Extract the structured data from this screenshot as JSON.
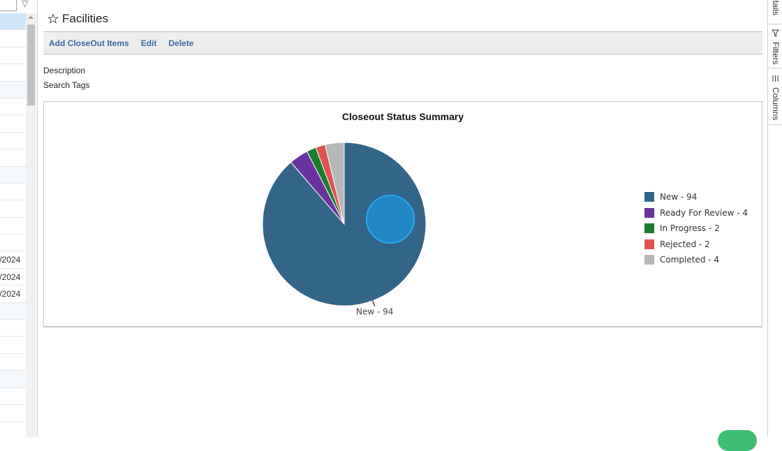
{
  "left_grid": {
    "rows": [
      {
        "text": "",
        "state": "sel"
      },
      {
        "text": "",
        "state": ""
      },
      {
        "text": "",
        "state": ""
      },
      {
        "text": "",
        "state": ""
      },
      {
        "text": "",
        "state": "alt"
      },
      {
        "text": "",
        "state": ""
      },
      {
        "text": "",
        "state": ""
      },
      {
        "text": "",
        "state": ""
      },
      {
        "text": "",
        "state": ""
      },
      {
        "text": "",
        "state": "alt"
      },
      {
        "text": "",
        "state": ""
      },
      {
        "text": "",
        "state": ""
      },
      {
        "text": "",
        "state": ""
      },
      {
        "text": "",
        "state": ""
      },
      {
        "text": "'/2024",
        "state": ""
      },
      {
        "text": "'/2024",
        "state": ""
      },
      {
        "text": "'/2024",
        "state": ""
      },
      {
        "text": "",
        "state": "alt"
      },
      {
        "text": "",
        "state": ""
      },
      {
        "text": "",
        "state": ""
      },
      {
        "text": "",
        "state": ""
      },
      {
        "text": "",
        "state": "alt"
      },
      {
        "text": "",
        "state": ""
      },
      {
        "text": "",
        "state": ""
      },
      {
        "text": "",
        "state": ""
      }
    ]
  },
  "header": {
    "title": "Facilities"
  },
  "toolbar": {
    "add_label": "Add CloseOut Items",
    "edit_label": "Edit",
    "delete_label": "Delete"
  },
  "fields": {
    "description_label": "Description",
    "search_tags_label": "Search Tags"
  },
  "right_panel": {
    "tabs": [
      {
        "label": "etails",
        "icon": ""
      },
      {
        "label": "Filters",
        "icon": "filter-icon"
      },
      {
        "label": "Columns",
        "icon": "columns-icon"
      }
    ]
  },
  "chart_data": {
    "type": "pie",
    "title": "Closeout Status Summary",
    "categories": [
      "New",
      "Ready For Review",
      "In Progress",
      "Rejected",
      "Completed"
    ],
    "values": [
      94,
      4,
      2,
      2,
      4
    ],
    "colors": [
      "#336589",
      "#6a329f",
      "#1a7d2e",
      "#e05252",
      "#b8b8b8"
    ],
    "legend_labels": [
      "New - 94",
      "Ready For Review - 4",
      "In Progress - 2",
      "Rejected - 2",
      "Completed - 4"
    ],
    "data_labels": [
      "New - 94"
    ],
    "legend_position": "right"
  }
}
